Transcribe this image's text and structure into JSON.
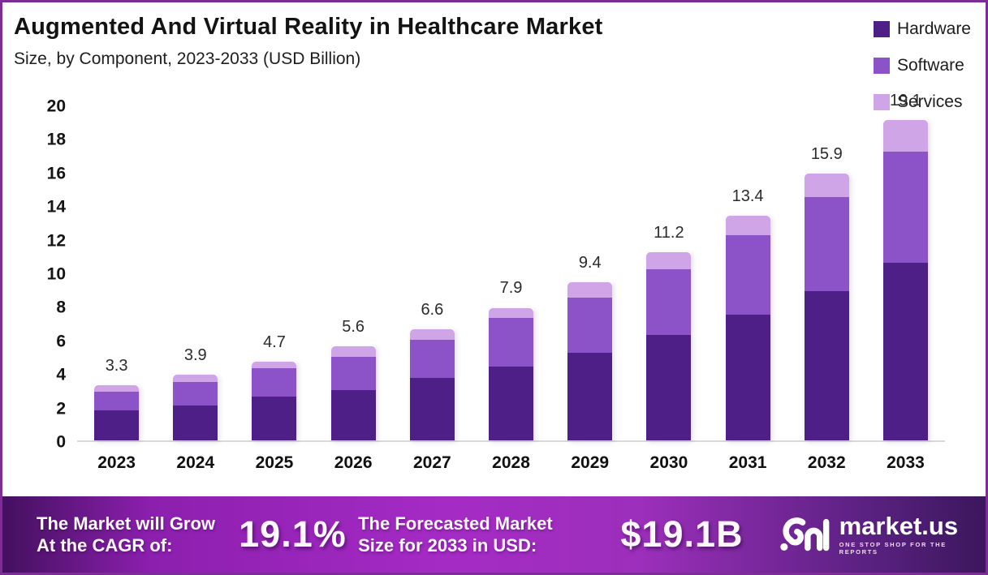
{
  "header": {
    "title": "Augmented And Virtual Reality in Healthcare Market",
    "subtitle": "Size, by Component, 2023-2033 (USD Billion)"
  },
  "legend": {
    "items": [
      {
        "label": "Hardware",
        "color": "#4e1f87"
      },
      {
        "label": "Software",
        "color": "#8c52c7"
      },
      {
        "label": "Services",
        "color": "#cfa5e8"
      }
    ]
  },
  "chart_data": {
    "type": "bar",
    "stacked": true,
    "title": "Augmented And Virtual Reality in Healthcare Market Size, by Component, 2023-2033 (USD Billion)",
    "categories": [
      "2023",
      "2024",
      "2025",
      "2026",
      "2027",
      "2028",
      "2029",
      "2030",
      "2031",
      "2032",
      "2033"
    ],
    "series": [
      {
        "name": "Hardware",
        "color": "#4e1f87",
        "values": [
          1.8,
          2.1,
          2.6,
          3.0,
          3.7,
          4.4,
          5.2,
          6.3,
          7.5,
          8.9,
          10.6
        ]
      },
      {
        "name": "Software",
        "color": "#8c52c7",
        "values": [
          1.1,
          1.4,
          1.7,
          2.0,
          2.3,
          2.9,
          3.3,
          3.9,
          4.7,
          5.6,
          6.6
        ]
      },
      {
        "name": "Services",
        "color": "#cfa5e8",
        "values": [
          0.4,
          0.4,
          0.4,
          0.6,
          0.6,
          0.6,
          0.9,
          1.0,
          1.2,
          1.4,
          1.9
        ]
      }
    ],
    "totals": [
      3.3,
      3.9,
      4.7,
      5.6,
      6.6,
      7.9,
      9.4,
      11.2,
      13.4,
      15.9,
      19.1
    ],
    "xlabel": "",
    "ylabel": "",
    "ylim": [
      0,
      20
    ],
    "yticks": [
      0,
      2,
      4,
      6,
      8,
      10,
      12,
      14,
      16,
      18,
      20
    ],
    "grid": false,
    "legend_position": "top-right"
  },
  "footer": {
    "cagr_line1": "The Market will Grow",
    "cagr_line2": "At the CAGR of:",
    "cagr_value": "19.1%",
    "forecast_line1": "The Forecasted Market",
    "forecast_line2": "Size for 2033 in USD:",
    "forecast_value": "$19.1B",
    "brand_name": "market.us",
    "brand_tagline": "ONE STOP SHOP FOR THE REPORTS"
  },
  "colors": {
    "border": "#7c2d96",
    "hardware": "#4e1f87",
    "software": "#8c52c7",
    "services": "#cfa5e8",
    "baseline": "#d9d9d9",
    "banner_bright": "#a52bc5",
    "banner_dark": "#43105f"
  }
}
